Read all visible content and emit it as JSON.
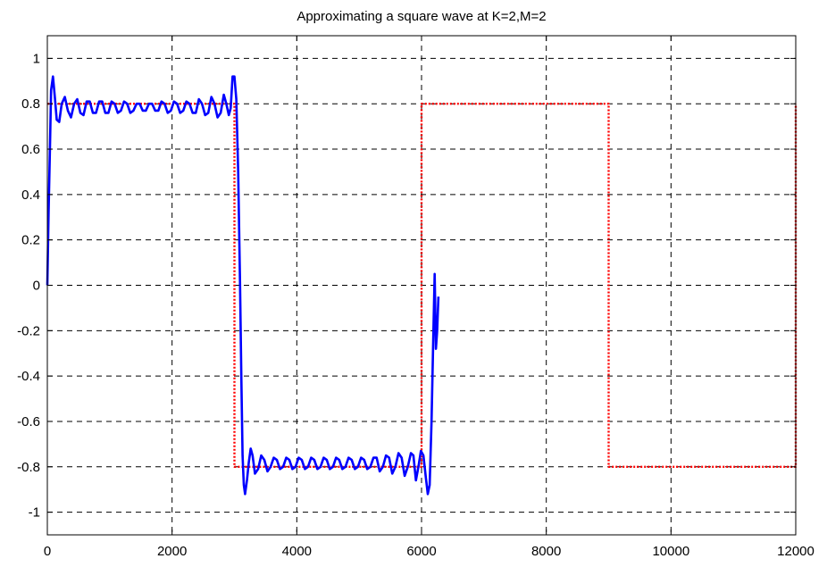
{
  "chart_data": {
    "type": "line",
    "title": "Approximating a square wave at K=2,M=2",
    "xlabel": "",
    "ylabel": "",
    "xlim": [
      0,
      12000
    ],
    "ylim": [
      -1.1,
      1.1
    ],
    "grid": true,
    "xticks": [
      0,
      2000,
      4000,
      6000,
      8000,
      10000,
      12000
    ],
    "xtick_labels": [
      "0",
      "2000",
      "4000",
      "6000",
      "8000",
      "10000",
      "12000"
    ],
    "yticks": [
      1,
      0.8,
      0.6,
      0.4,
      0.2,
      0,
      -0.2,
      -0.4,
      -0.6,
      -0.8,
      -1
    ],
    "ytick_labels": [
      "1",
      "0.8",
      "0.6",
      "0.4",
      "0.2",
      "0",
      "-0.2",
      "-0.4",
      "-0.6",
      "-0.8",
      "-1"
    ],
    "series": [
      {
        "style": "dotted",
        "color": "#ff0000",
        "x": [
          0,
          3000,
          3000,
          6000,
          6000,
          9000,
          9000,
          12000,
          12000
        ],
        "y": [
          0.8,
          0.8,
          -0.8,
          -0.8,
          0.8,
          0.8,
          -0.8,
          -0.8,
          0.8
        ]
      },
      {
        "style": "solid",
        "color": "#0000ff",
        "x": [
          0,
          20,
          40,
          60,
          90,
          120,
          150,
          190,
          230,
          280,
          330,
          380,
          430,
          480,
          530,
          580,
          630,
          680,
          730,
          780,
          830,
          880,
          930,
          980,
          1030,
          1080,
          1130,
          1180,
          1230,
          1280,
          1330,
          1380,
          1430,
          1480,
          1530,
          1580,
          1630,
          1680,
          1730,
          1780,
          1830,
          1880,
          1930,
          1980,
          2030,
          2080,
          2130,
          2180,
          2230,
          2280,
          2330,
          2380,
          2430,
          2480,
          2530,
          2580,
          2630,
          2680,
          2730,
          2780,
          2830,
          2870,
          2910,
          2940,
          2970,
          3000,
          3030,
          3060,
          3090,
          3110,
          3130,
          3150,
          3170,
          3200,
          3230,
          3260,
          3290,
          3330,
          3380,
          3430,
          3480,
          3530,
          3580,
          3630,
          3680,
          3730,
          3780,
          3830,
          3880,
          3930,
          3980,
          4030,
          4080,
          4130,
          4180,
          4230,
          4280,
          4330,
          4380,
          4430,
          4480,
          4530,
          4580,
          4630,
          4680,
          4730,
          4780,
          4830,
          4880,
          4930,
          4980,
          5030,
          5080,
          5130,
          5180,
          5230,
          5280,
          5330,
          5380,
          5430,
          5480,
          5530,
          5580,
          5630,
          5680,
          5730,
          5780,
          5830,
          5870,
          5910,
          5950,
          5990,
          6030,
          6070,
          6100,
          6130,
          6160,
          6190,
          6210,
          6230,
          6250,
          6270
        ],
        "y": [
          0.0,
          0.32,
          0.58,
          0.86,
          0.92,
          0.83,
          0.73,
          0.72,
          0.8,
          0.83,
          0.77,
          0.74,
          0.8,
          0.82,
          0.76,
          0.75,
          0.81,
          0.81,
          0.76,
          0.76,
          0.81,
          0.81,
          0.76,
          0.76,
          0.81,
          0.8,
          0.76,
          0.77,
          0.81,
          0.8,
          0.76,
          0.77,
          0.8,
          0.8,
          0.77,
          0.77,
          0.8,
          0.8,
          0.77,
          0.77,
          0.81,
          0.8,
          0.76,
          0.77,
          0.81,
          0.8,
          0.76,
          0.77,
          0.81,
          0.8,
          0.76,
          0.76,
          0.82,
          0.8,
          0.75,
          0.76,
          0.83,
          0.8,
          0.74,
          0.76,
          0.84,
          0.8,
          0.75,
          0.78,
          0.92,
          0.92,
          0.82,
          0.5,
          0.0,
          -0.4,
          -0.75,
          -0.88,
          -0.92,
          -0.86,
          -0.78,
          -0.72,
          -0.75,
          -0.83,
          -0.81,
          -0.75,
          -0.77,
          -0.82,
          -0.8,
          -0.76,
          -0.77,
          -0.81,
          -0.8,
          -0.76,
          -0.77,
          -0.81,
          -0.8,
          -0.76,
          -0.77,
          -0.81,
          -0.8,
          -0.76,
          -0.77,
          -0.81,
          -0.8,
          -0.76,
          -0.77,
          -0.81,
          -0.8,
          -0.76,
          -0.77,
          -0.81,
          -0.8,
          -0.76,
          -0.77,
          -0.81,
          -0.8,
          -0.76,
          -0.77,
          -0.81,
          -0.8,
          -0.76,
          -0.76,
          -0.82,
          -0.8,
          -0.75,
          -0.76,
          -0.83,
          -0.8,
          -0.74,
          -0.76,
          -0.84,
          -0.8,
          -0.74,
          -0.75,
          -0.86,
          -0.8,
          -0.73,
          -0.75,
          -0.85,
          -0.92,
          -0.88,
          -0.6,
          -0.2,
          0.05,
          -0.28,
          -0.2,
          -0.05
        ]
      }
    ]
  }
}
